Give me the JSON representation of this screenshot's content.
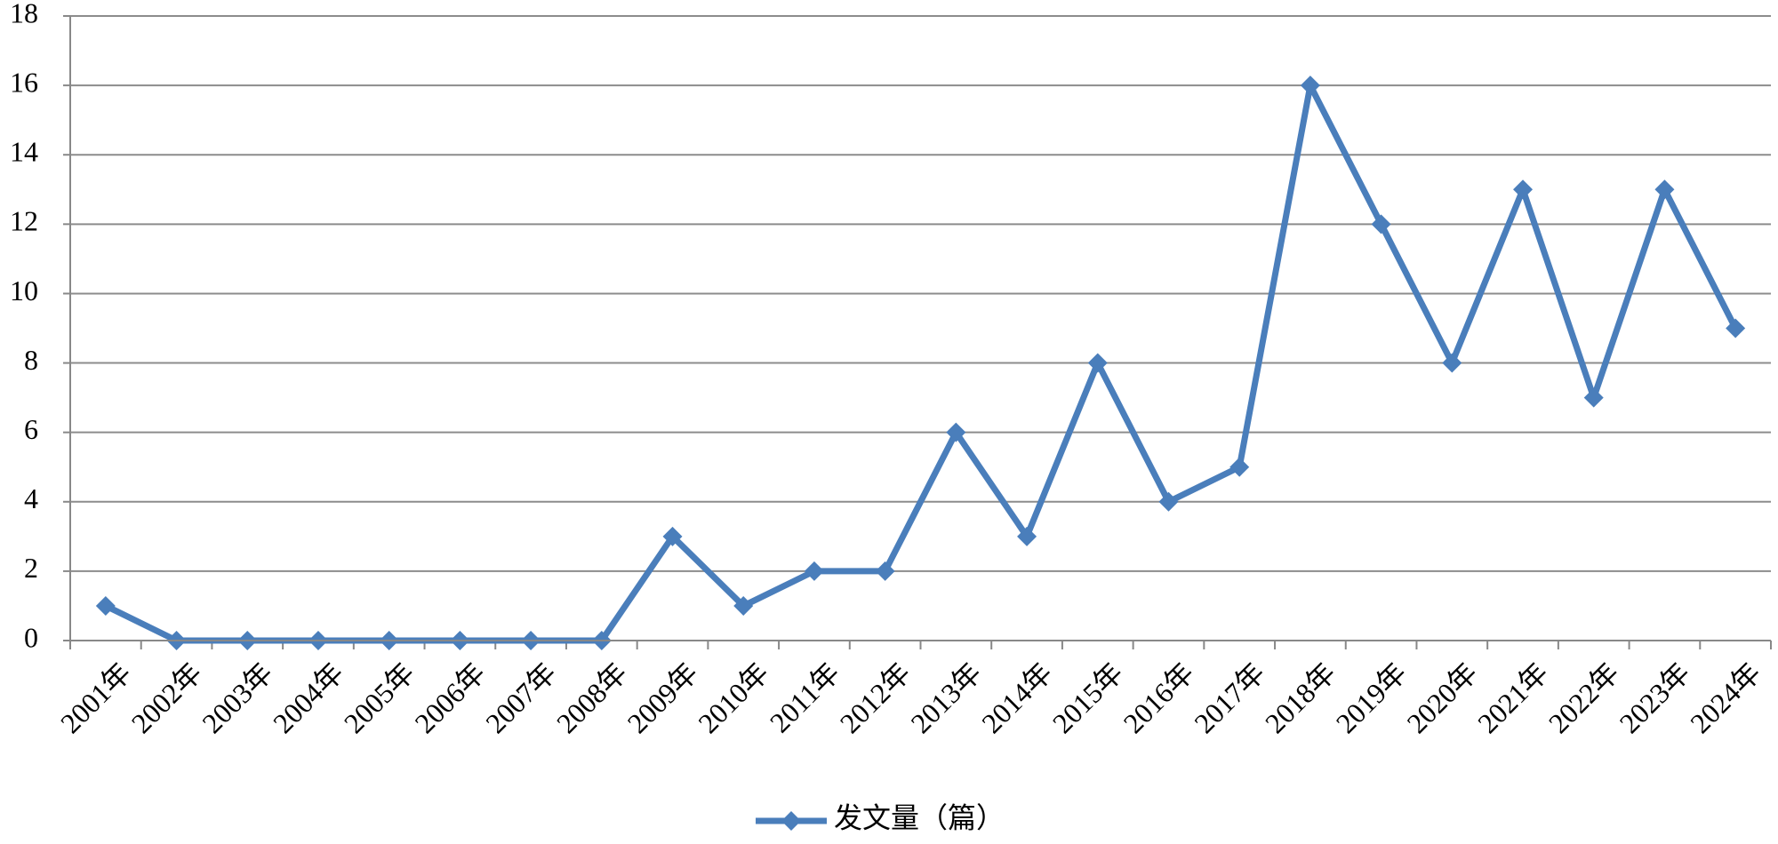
{
  "chart_data": {
    "type": "line",
    "categories": [
      "2001年",
      "2002年",
      "2003年",
      "2004年",
      "2005年",
      "2006年",
      "2007年",
      "2008年",
      "2009年",
      "2010年",
      "2011年",
      "2012年",
      "2013年",
      "2014年",
      "2015年",
      "2016年",
      "2017年",
      "2018年",
      "2019年",
      "2020年",
      "2021年",
      "2022年",
      "2023年",
      "2024年"
    ],
    "series": [
      {
        "name": "发文量（篇）",
        "color": "#4a7ebb",
        "values": [
          1,
          0,
          0,
          0,
          0,
          0,
          0,
          0,
          3,
          1,
          2,
          2,
          6,
          3,
          8,
          4,
          5,
          16,
          12,
          8,
          13,
          7,
          13,
          9
        ]
      }
    ],
    "ylim": [
      0,
      18
    ],
    "yticks": [
      0,
      2,
      4,
      6,
      8,
      10,
      12,
      14,
      16,
      18
    ],
    "grid": true,
    "legend": "bottom"
  }
}
